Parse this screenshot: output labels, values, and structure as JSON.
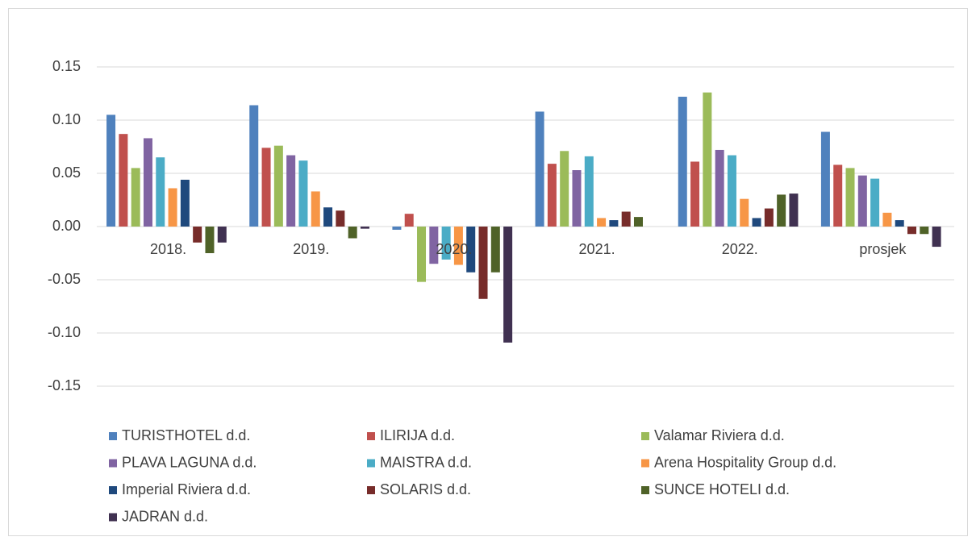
{
  "chart_data": {
    "type": "bar",
    "categories": [
      "2018.",
      "2019.",
      "2020.",
      "2021.",
      "2022.",
      "prosjek"
    ],
    "series": [
      {
        "name": "TURISTHOTEL d.d.",
        "color": "#4f81bd",
        "values": [
          0.105,
          0.114,
          -0.003,
          0.108,
          0.122,
          0.089
        ]
      },
      {
        "name": "ILIRIJA d.d.",
        "color": "#c0504d",
        "values": [
          0.087,
          0.074,
          0.012,
          0.059,
          0.061,
          0.058
        ]
      },
      {
        "name": "Valamar Riviera d.d.",
        "color": "#9bbb59",
        "values": [
          0.055,
          0.076,
          -0.052,
          0.071,
          0.126,
          0.055
        ]
      },
      {
        "name": "PLAVA LAGUNA d.d.",
        "color": "#8064a2",
        "values": [
          0.083,
          0.067,
          -0.035,
          0.053,
          0.072,
          0.048
        ]
      },
      {
        "name": "MAISTRA d.d.",
        "color": "#4bacc6",
        "values": [
          0.065,
          0.062,
          -0.031,
          0.066,
          0.067,
          0.045
        ]
      },
      {
        "name": "Arena Hospitality Group d.d.",
        "color": "#f79646",
        "values": [
          0.036,
          0.033,
          -0.036,
          0.008,
          0.026,
          0.013
        ]
      },
      {
        "name": "Imperial Riviera d.d.",
        "color": "#1f497d",
        "values": [
          0.044,
          0.018,
          -0.043,
          0.006,
          0.008,
          0.006
        ]
      },
      {
        "name": "SOLARIS d.d.",
        "color": "#772c2a",
        "values": [
          -0.015,
          0.015,
          -0.068,
          0.014,
          0.017,
          -0.007
        ]
      },
      {
        "name": "SUNCE HOTELI d.d.",
        "color": "#4f6228",
        "values": [
          -0.025,
          -0.011,
          -0.043,
          0.009,
          0.03,
          -0.007
        ]
      },
      {
        "name": "JADRAN d.d.",
        "color": "#403151",
        "values": [
          -0.015,
          -0.002,
          -0.109,
          0,
          0.031,
          -0.019
        ]
      }
    ],
    "ylim": [
      -0.15,
      0.15
    ],
    "yticks": [
      0.15,
      {
        "value": 0.1,
        "label": "0.10"
      },
      0.05,
      {
        "value": 0,
        "label": "0.00"
      },
      -0.05,
      {
        "value": -0.1,
        "label": "-0.10"
      },
      -0.15
    ],
    "grid": true
  }
}
